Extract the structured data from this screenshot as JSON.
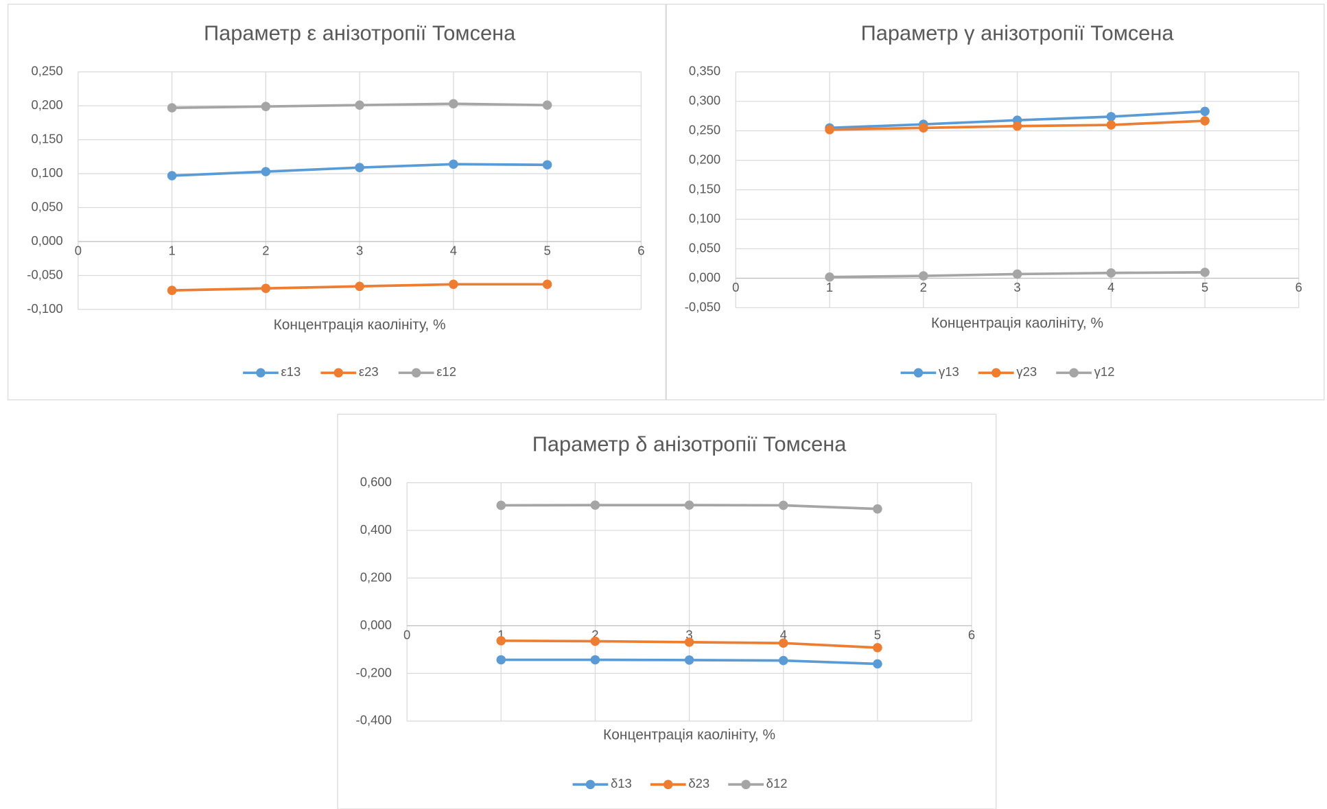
{
  "chart_data": [
    {
      "type": "line",
      "title": "Параметр ε анізотропії Томсена",
      "x_label": "Концентрація каолініту, %",
      "x": [
        1,
        2,
        3,
        4,
        5
      ],
      "xlim": [
        0,
        6
      ],
      "xticks": [
        0,
        1,
        2,
        3,
        4,
        5,
        6
      ],
      "ylim": [
        -0.1,
        0.25
      ],
      "yticks": [
        {
          "value": -0.1,
          "label": "-0,100"
        },
        {
          "value": -0.05,
          "label": "-0,050"
        },
        {
          "value": 0,
          "label": "0,000"
        },
        {
          "value": 0.05,
          "label": "0,050"
        },
        {
          "value": 0.1,
          "label": "0,100"
        },
        {
          "value": 0.15,
          "label": "0,150"
        },
        {
          "value": 0.2,
          "label": "0,200"
        },
        {
          "value": 0.25,
          "label": "0,250"
        }
      ],
      "grid": true,
      "legend": "bottom",
      "series": [
        {
          "name": "ε13",
          "color": "#5b9bd5",
          "values": [
            0.097,
            0.103,
            0.109,
            0.114,
            0.113
          ]
        },
        {
          "name": "ε23",
          "color": "#ed7d31",
          "values": [
            -0.072,
            -0.069,
            -0.066,
            -0.063,
            -0.063
          ]
        },
        {
          "name": "ε12",
          "color": "#a5a5a5",
          "values": [
            0.197,
            0.199,
            0.201,
            0.203,
            0.201
          ]
        }
      ]
    },
    {
      "type": "line",
      "title": "Параметр γ анізотропії Томсена",
      "x_label": "Концентрація каолініту, %",
      "x": [
        1,
        2,
        3,
        4,
        5
      ],
      "xlim": [
        0,
        6
      ],
      "xticks": [
        0,
        1,
        2,
        3,
        4,
        5,
        6
      ],
      "ylim": [
        -0.05,
        0.35
      ],
      "yticks": [
        {
          "value": -0.05,
          "label": "-0,050"
        },
        {
          "value": 0,
          "label": "0,000"
        },
        {
          "value": 0.05,
          "label": "0,050"
        },
        {
          "value": 0.1,
          "label": "0,100"
        },
        {
          "value": 0.15,
          "label": "0,150"
        },
        {
          "value": 0.2,
          "label": "0,200"
        },
        {
          "value": 0.25,
          "label": "0,250"
        },
        {
          "value": 0.3,
          "label": "0,300"
        },
        {
          "value": 0.35,
          "label": "0,350"
        }
      ],
      "grid": true,
      "legend": "bottom",
      "series": [
        {
          "name": "γ13",
          "color": "#5b9bd5",
          "values": [
            0.255,
            0.261,
            0.268,
            0.274,
            0.283
          ]
        },
        {
          "name": "γ23",
          "color": "#ed7d31",
          "values": [
            0.252,
            0.255,
            0.258,
            0.26,
            0.267
          ]
        },
        {
          "name": "γ12",
          "color": "#a5a5a5",
          "values": [
            0.002,
            0.004,
            0.007,
            0.009,
            0.01
          ]
        }
      ]
    },
    {
      "type": "line",
      "title": "Параметр δ анізотропії Томсена",
      "x_label": "Концентрація каолініту, %",
      "x": [
        1,
        2,
        3,
        4,
        5
      ],
      "xlim": [
        0,
        6
      ],
      "xticks": [
        0,
        1,
        2,
        3,
        4,
        5,
        6
      ],
      "ylim": [
        -0.4,
        0.6
      ],
      "yticks": [
        {
          "value": -0.4,
          "label": "-0,400"
        },
        {
          "value": -0.2,
          "label": "-0,200"
        },
        {
          "value": 0,
          "label": "0,000"
        },
        {
          "value": 0.2,
          "label": "0,200"
        },
        {
          "value": 0.4,
          "label": "0,400"
        },
        {
          "value": 0.6,
          "label": "0,600"
        }
      ],
      "grid": true,
      "legend": "bottom",
      "series": [
        {
          "name": "δ13",
          "color": "#5b9bd5",
          "values": [
            -0.143,
            -0.143,
            -0.144,
            -0.146,
            -0.16
          ]
        },
        {
          "name": "δ23",
          "color": "#ed7d31",
          "values": [
            -0.063,
            -0.065,
            -0.069,
            -0.073,
            -0.092
          ]
        },
        {
          "name": "δ12",
          "color": "#a5a5a5",
          "values": [
            0.505,
            0.506,
            0.506,
            0.505,
            0.49
          ]
        }
      ]
    }
  ]
}
